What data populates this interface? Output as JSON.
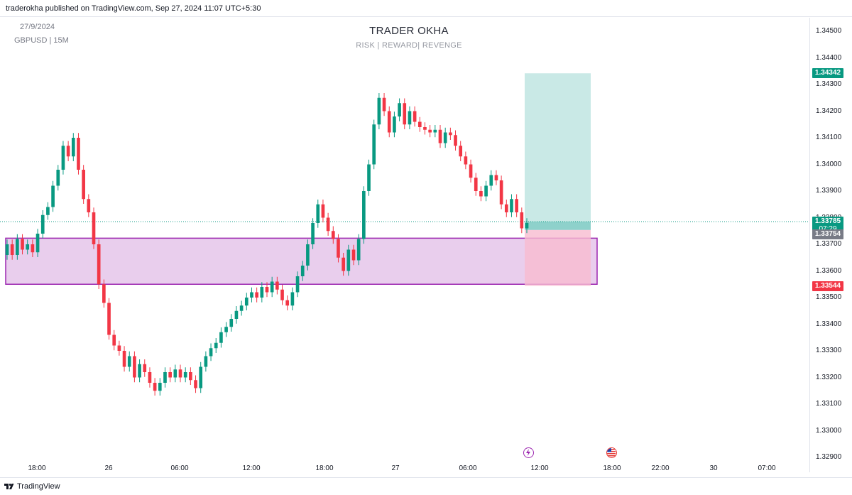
{
  "header": {
    "published": "traderokha published on TradingView.com, Sep 27, 2024 11:07 UTC+5:30"
  },
  "chart_info": {
    "date": "27/9/2024",
    "symbol": "GBPUSD | 15M",
    "title": "TRADER OKHA",
    "subtitle": "RISK | REWARD| REVENGE"
  },
  "footer": {
    "brand": "TradingView"
  },
  "colors": {
    "up": "#089981",
    "down": "#f23645",
    "zone_fill": "#e1bee7",
    "zone_border": "#9c27b0",
    "target_fill": "#b2dfdb",
    "stop_fill": "#f8bbd0"
  },
  "chart_data": {
    "type": "candlestick",
    "symbol": "GBPUSD",
    "interval": "15M",
    "y_ticks": [
      "1.34500",
      "1.34400",
      "1.34300",
      "1.34200",
      "1.34100",
      "1.34000",
      "1.33900",
      "1.33800",
      "1.33700",
      "1.33600",
      "1.33500",
      "1.33400",
      "1.33300",
      "1.33200",
      "1.33100",
      "1.33000",
      "1.32900"
    ],
    "x_ticks": [
      "18:00",
      "26",
      "06:00",
      "12:00",
      "18:00",
      "27",
      "06:00",
      "12:00",
      "18:00",
      "22:00",
      "30",
      "07:00"
    ],
    "price_labels": {
      "target": "1.34342",
      "current": "1.33785",
      "countdown": "07:29",
      "entry": "1.33754",
      "stop": "1.33544"
    },
    "demand_zone": {
      "top": 1.33723,
      "bottom": 1.3355
    },
    "position": {
      "entry": 1.33754,
      "target": 1.34342,
      "stop": 1.33544
    },
    "candles": [
      [
        1.3366,
        1.337
      ],
      [
        1.337,
        1.3366
      ],
      [
        1.3366,
        1.3372
      ],
      [
        1.3372,
        1.3368
      ],
      [
        1.3368,
        1.337
      ],
      [
        1.337,
        1.3367
      ],
      [
        1.3367,
        1.3374
      ],
      [
        1.3374,
        1.3381
      ],
      [
        1.3381,
        1.3384
      ],
      [
        1.3384,
        1.3392
      ],
      [
        1.3392,
        1.3398
      ],
      [
        1.3398,
        1.3407
      ],
      [
        1.3407,
        1.3403
      ],
      [
        1.3403,
        1.341
      ],
      [
        1.341,
        1.3398
      ],
      [
        1.3398,
        1.3387
      ],
      [
        1.3387,
        1.3382
      ],
      [
        1.3382,
        1.337
      ],
      [
        1.337,
        1.3355
      ],
      [
        1.3355,
        1.3348
      ],
      [
        1.3348,
        1.3336
      ],
      [
        1.3336,
        1.3332
      ],
      [
        1.3332,
        1.333
      ],
      [
        1.333,
        1.3324
      ],
      [
        1.3324,
        1.3328
      ],
      [
        1.3328,
        1.332
      ],
      [
        1.332,
        1.3325
      ],
      [
        1.3325,
        1.3322
      ],
      [
        1.3322,
        1.3318
      ],
      [
        1.3318,
        1.3315
      ],
      [
        1.3315,
        1.3318
      ],
      [
        1.3318,
        1.3322
      ],
      [
        1.3322,
        1.332
      ],
      [
        1.332,
        1.3323
      ],
      [
        1.3323,
        1.332
      ],
      [
        1.332,
        1.3322
      ],
      [
        1.3322,
        1.3319
      ],
      [
        1.3319,
        1.3316
      ],
      [
        1.3316,
        1.3324
      ],
      [
        1.3324,
        1.3328
      ],
      [
        1.3328,
        1.3331
      ],
      [
        1.3331,
        1.3333
      ],
      [
        1.3333,
        1.3337
      ],
      [
        1.3337,
        1.3339
      ],
      [
        1.3339,
        1.3342
      ],
      [
        1.3342,
        1.3345
      ],
      [
        1.3345,
        1.3347
      ],
      [
        1.3347,
        1.335
      ],
      [
        1.335,
        1.3352
      ],
      [
        1.3352,
        1.335
      ],
      [
        1.335,
        1.3354
      ],
      [
        1.3354,
        1.3352
      ],
      [
        1.3352,
        1.3356
      ],
      [
        1.3356,
        1.3353
      ],
      [
        1.3353,
        1.3349
      ],
      [
        1.3349,
        1.3347
      ],
      [
        1.3347,
        1.3352
      ],
      [
        1.3352,
        1.3358
      ],
      [
        1.3358,
        1.3362
      ],
      [
        1.3362,
        1.337
      ],
      [
        1.337,
        1.3378
      ],
      [
        1.3378,
        1.3385
      ],
      [
        1.3385,
        1.338
      ],
      [
        1.338,
        1.3375
      ],
      [
        1.3375,
        1.3372
      ],
      [
        1.3372,
        1.3365
      ],
      [
        1.3365,
        1.336
      ],
      [
        1.336,
        1.3368
      ],
      [
        1.3368,
        1.3364
      ],
      [
        1.3364,
        1.3372
      ],
      [
        1.3372,
        1.339
      ],
      [
        1.339,
        1.34
      ],
      [
        1.34,
        1.3415
      ],
      [
        1.3415,
        1.3425
      ],
      [
        1.3425,
        1.342
      ],
      [
        1.342,
        1.3412
      ],
      [
        1.3412,
        1.3418
      ],
      [
        1.3418,
        1.3423
      ],
      [
        1.3423,
        1.3415
      ],
      [
        1.3415,
        1.342
      ],
      [
        1.342,
        1.3416
      ],
      [
        1.3416,
        1.3414
      ],
      [
        1.3414,
        1.3413
      ],
      [
        1.3413,
        1.3412
      ],
      [
        1.3412,
        1.3413
      ],
      [
        1.3413,
        1.3408
      ],
      [
        1.3408,
        1.3412
      ],
      [
        1.3412,
        1.3411
      ],
      [
        1.3411,
        1.3407
      ],
      [
        1.3407,
        1.3403
      ],
      [
        1.3403,
        1.34
      ],
      [
        1.34,
        1.3395
      ],
      [
        1.3395,
        1.339
      ],
      [
        1.339,
        1.3388
      ],
      [
        1.3388,
        1.3392
      ],
      [
        1.3392,
        1.3396
      ],
      [
        1.3396,
        1.3394
      ],
      [
        1.3394,
        1.3385
      ],
      [
        1.3385,
        1.3382
      ],
      [
        1.3382,
        1.3387
      ],
      [
        1.3387,
        1.3382
      ],
      [
        1.3382,
        1.3376
      ],
      [
        1.3376,
        1.3378
      ]
    ]
  }
}
